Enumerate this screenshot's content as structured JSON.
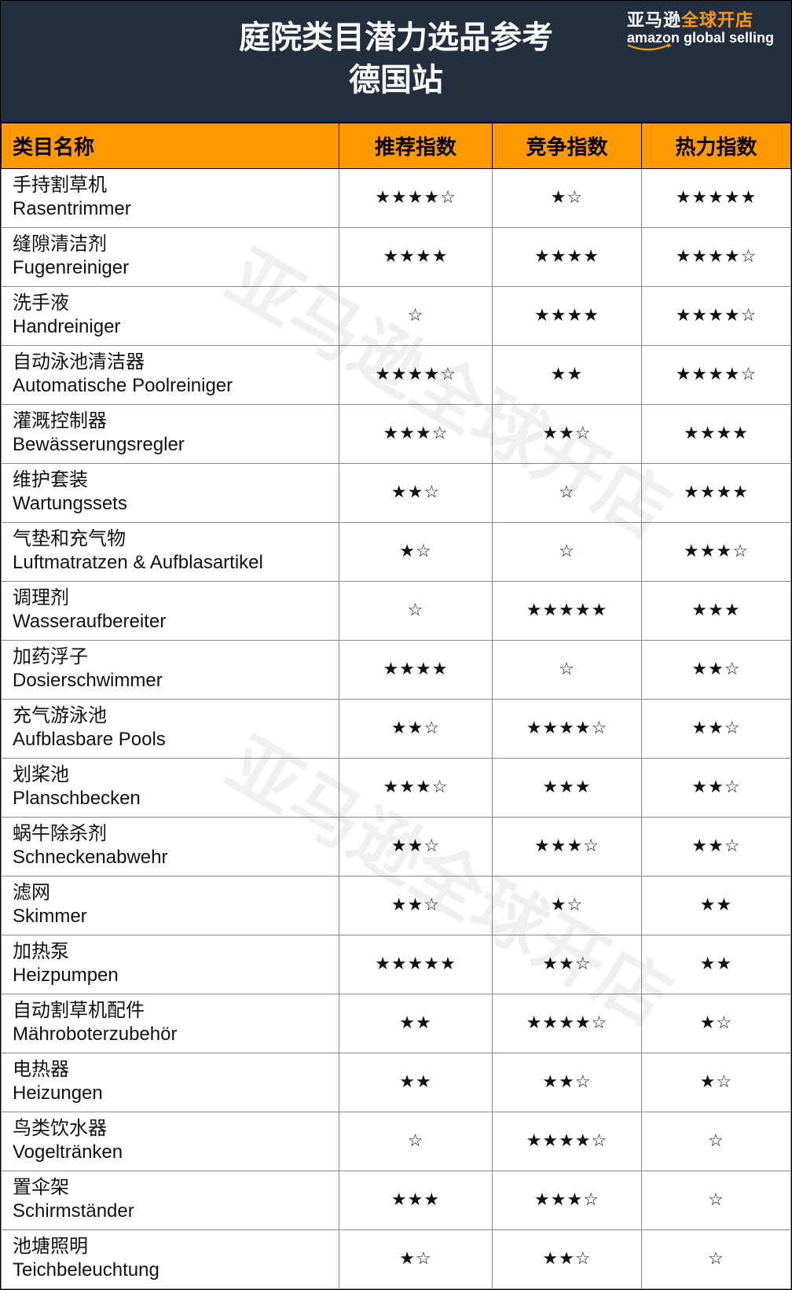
{
  "header": {
    "title_line1": "庭院类目潜力选品参考",
    "title_line2": "德国站",
    "logo_cn_prefix": "亚马逊",
    "logo_cn_orange": "全球开店",
    "logo_en": "amazon global selling"
  },
  "columns": {
    "name": "类目名称",
    "recommend": "推荐指数",
    "compete": "竞争指数",
    "heat": "热力指数"
  },
  "watermark": "亚马逊全球开店",
  "rows": [
    {
      "cn": "手持割草机",
      "de": "Rasentrimmer",
      "recommend": "★★★★☆",
      "compete": "★☆",
      "heat": "★★★★★"
    },
    {
      "cn": "缝隙清洁剂",
      "de": "Fugenreiniger",
      "recommend": "★★★★",
      "compete": "★★★★",
      "heat": "★★★★☆"
    },
    {
      "cn": "洗手液",
      "de": "Handreiniger",
      "recommend": "☆",
      "compete": "★★★★",
      "heat": "★★★★☆"
    },
    {
      "cn": "自动泳池清洁器",
      "de": "Automatische Poolreiniger",
      "recommend": "★★★★☆",
      "compete": "★★",
      "heat": "★★★★☆"
    },
    {
      "cn": "灌溉控制器",
      "de": "Bewässerungsregler",
      "recommend": "★★★☆",
      "compete": "★★☆",
      "heat": "★★★★"
    },
    {
      "cn": "维护套装",
      "de": "Wartungssets",
      "recommend": "★★☆",
      "compete": "☆",
      "heat": "★★★★"
    },
    {
      "cn": "气垫和充气物",
      "de": "Luftmatratzen & Aufblasartikel",
      "recommend": "★☆",
      "compete": "☆",
      "heat": "★★★☆"
    },
    {
      "cn": "调理剂",
      "de": "Wasseraufbereiter",
      "recommend": "☆",
      "compete": "★★★★★",
      "heat": "★★★"
    },
    {
      "cn": "加药浮子",
      "de": "Dosierschwimmer",
      "recommend": "★★★★",
      "compete": "☆",
      "heat": "★★☆"
    },
    {
      "cn": "充气游泳池",
      "de": "Aufblasbare Pools",
      "recommend": "★★☆",
      "compete": "★★★★☆",
      "heat": "★★☆"
    },
    {
      "cn": "划桨池",
      "de": "Planschbecken",
      "recommend": "★★★☆",
      "compete": "★★★",
      "heat": "★★☆"
    },
    {
      "cn": "蜗牛除杀剂",
      "de": "Schneckenabwehr",
      "recommend": "★★☆",
      "compete": "★★★☆",
      "heat": "★★☆"
    },
    {
      "cn": "滤网",
      "de": "Skimmer",
      "recommend": "★★☆",
      "compete": "★☆",
      "heat": "★★"
    },
    {
      "cn": "加热泵",
      "de": "Heizpumpen",
      "recommend": "★★★★★",
      "compete": "★★☆",
      "heat": "★★"
    },
    {
      "cn": "自动割草机配件",
      "de": "Mähroboterzubehör",
      "recommend": "★★",
      "compete": "★★★★☆",
      "heat": "★☆"
    },
    {
      "cn": "电热器",
      "de": "Heizungen",
      "recommend": "★★",
      "compete": "★★☆",
      "heat": "★☆"
    },
    {
      "cn": "鸟类饮水器",
      "de": "Vogeltränken",
      "recommend": "☆",
      "compete": "★★★★☆",
      "heat": "☆"
    },
    {
      "cn": "置伞架",
      "de": "Schirmständer",
      "recommend": "★★★",
      "compete": "★★★☆",
      "heat": "☆"
    },
    {
      "cn": "池塘照明",
      "de": "Teichbeleuchtung",
      "recommend": "★☆",
      "compete": "★★☆",
      "heat": "☆"
    }
  ]
}
